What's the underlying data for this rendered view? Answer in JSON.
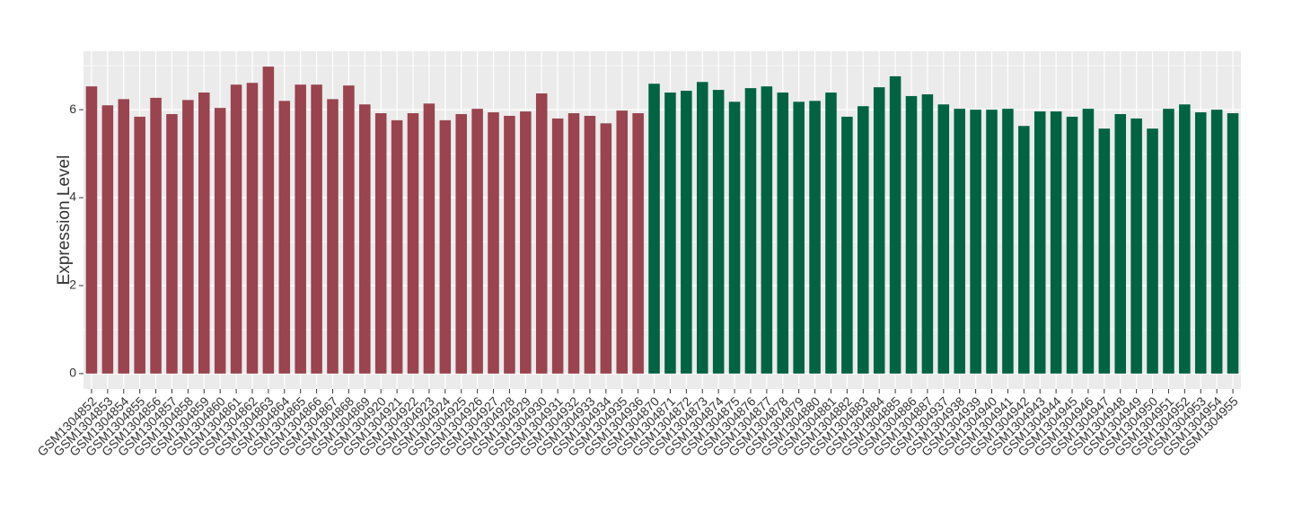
{
  "chart_data": {
    "type": "bar",
    "y_label": "Expression Level",
    "categories": [
      "GSM1304852",
      "GSM1304853",
      "GSM1304854",
      "GSM1304855",
      "GSM1304856",
      "GSM1304857",
      "GSM1304858",
      "GSM1304859",
      "GSM1304860",
      "GSM1304861",
      "GSM1304862",
      "GSM1304863",
      "GSM1304864",
      "GSM1304865",
      "GSM1304866",
      "GSM1304867",
      "GSM1304868",
      "GSM1304869",
      "GSM1304920",
      "GSM1304921",
      "GSM1304922",
      "GSM1304923",
      "GSM1304924",
      "GSM1304925",
      "GSM1304926",
      "GSM1304927",
      "GSM1304928",
      "GSM1304929",
      "GSM1304930",
      "GSM1304931",
      "GSM1304932",
      "GSM1304933",
      "GSM1304934",
      "GSM1304935",
      "GSM1304936",
      "GSM1304870",
      "GSM1304871",
      "GSM1304872",
      "GSM1304873",
      "GSM1304874",
      "GSM1304875",
      "GSM1304876",
      "GSM1304877",
      "GSM1304878",
      "GSM1304879",
      "GSM1304880",
      "GSM1304881",
      "GSM1304882",
      "GSM1304883",
      "GSM1304884",
      "GSM1304885",
      "GSM1304886",
      "GSM1304887",
      "GSM1304937",
      "GSM1304938",
      "GSM1304939",
      "GSM1304940",
      "GSM1304941",
      "GSM1304942",
      "GSM1304943",
      "GSM1304944",
      "GSM1304945",
      "GSM1304946",
      "GSM1304947",
      "GSM1304948",
      "GSM1304949",
      "GSM1304950",
      "GSM1304951",
      "GSM1304952",
      "GSM1304953",
      "GSM1304954",
      "GSM1304955"
    ],
    "values": [
      6.53,
      6.1,
      6.24,
      5.84,
      6.27,
      5.9,
      6.22,
      6.39,
      6.04,
      6.57,
      6.61,
      6.98,
      6.2,
      6.57,
      6.57,
      6.24,
      6.55,
      6.12,
      5.92,
      5.76,
      5.92,
      6.14,
      5.76,
      5.9,
      6.02,
      5.94,
      5.86,
      5.96,
      6.37,
      5.8,
      5.92,
      5.86,
      5.69,
      5.98,
      5.92,
      6.59,
      6.39,
      6.43,
      6.63,
      6.45,
      6.18,
      6.49,
      6.53,
      6.39,
      6.18,
      6.2,
      6.39,
      5.84,
      6.08,
      6.51,
      6.76,
      6.31,
      6.35,
      6.12,
      6.02,
      6.0,
      6.0,
      6.02,
      5.63,
      5.96,
      5.96,
      5.84,
      6.02,
      5.57,
      5.9,
      5.8,
      5.57,
      6.02,
      6.12,
      5.94,
      6.0,
      5.92
    ],
    "bar_colors": [
      "#99444f",
      "#99444f",
      "#99444f",
      "#99444f",
      "#99444f",
      "#99444f",
      "#99444f",
      "#99444f",
      "#99444f",
      "#99444f",
      "#99444f",
      "#99444f",
      "#99444f",
      "#99444f",
      "#99444f",
      "#99444f",
      "#99444f",
      "#99444f",
      "#99444f",
      "#99444f",
      "#99444f",
      "#99444f",
      "#99444f",
      "#99444f",
      "#99444f",
      "#99444f",
      "#99444f",
      "#99444f",
      "#99444f",
      "#99444f",
      "#99444f",
      "#99444f",
      "#99444f",
      "#99444f",
      "#99444f",
      "#006342",
      "#006342",
      "#006342",
      "#006342",
      "#006342",
      "#006342",
      "#006342",
      "#006342",
      "#006342",
      "#006342",
      "#006342",
      "#006342",
      "#006342",
      "#006342",
      "#006342",
      "#006342",
      "#006342",
      "#006342",
      "#006342",
      "#006342",
      "#006342",
      "#006342",
      "#006342",
      "#006342",
      "#006342",
      "#006342",
      "#006342",
      "#006342",
      "#006342",
      "#006342",
      "#006342",
      "#006342",
      "#006342",
      "#006342",
      "#006342",
      "#006342",
      "#006342"
    ],
    "ylim": [
      -0.35,
      7.33
    ],
    "yticks": [
      0,
      2,
      4,
      6
    ],
    "minor_yticks": [
      1,
      3,
      5,
      7
    ],
    "grid": true,
    "panel_color": "#ebebeb"
  }
}
